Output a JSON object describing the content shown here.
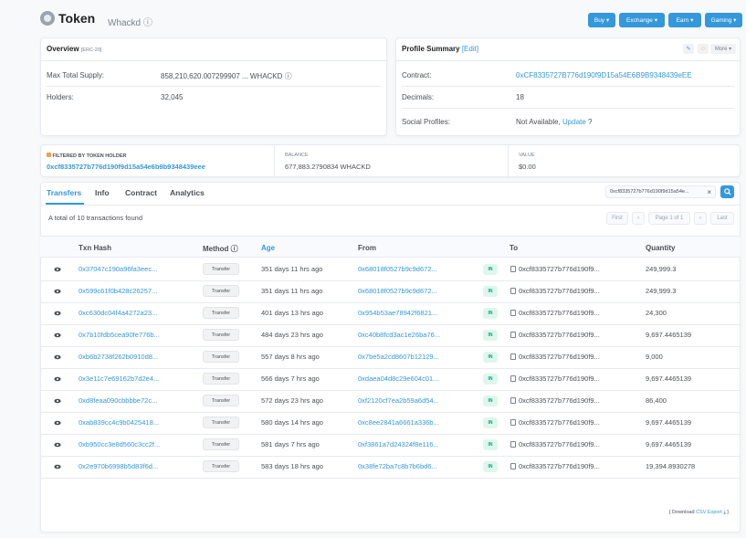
{
  "header": {
    "title": "Token",
    "subtitle": "Whackd ⓘ",
    "buttons": [
      "Buy ▾",
      "Exchange ▾",
      "Earn ▾",
      "Gaming ▾"
    ]
  },
  "overview": {
    "title": "Overview",
    "badge": "[ERC-20]",
    "rows": [
      {
        "label": "Max Total Supply:",
        "value": "858,210,620.007299907 ...  WHACKD ⓘ"
      },
      {
        "label": "Holders:",
        "value": "32,045"
      }
    ]
  },
  "profile": {
    "title": "Profile Summary",
    "edit": "[Edit]",
    "more": "More ▾",
    "rows": [
      {
        "label": "Contract:",
        "value": "0xCF8335727B776d190f9D15a54E6B9B9348439eEE"
      },
      {
        "label": "Decimals:",
        "value": "18"
      },
      {
        "label": "Social Profiles:",
        "value": "Not Available,",
        "link": "Update",
        "suffix": " ?"
      }
    ]
  },
  "filter": {
    "label": "FILTERED BY TOKEN HOLDER",
    "address": "0xcf8335727b776d190f9d15a54e6b9b9348439eee",
    "balance_label": "BALANCE",
    "balance": "677,883.2790834 WHACKD",
    "value_label": "VALUE",
    "value": "$0.00"
  },
  "tabs": [
    "Transfers",
    "Info",
    "Contract",
    "Analytics"
  ],
  "search": {
    "value": "0xcf8335727b776d190f9d15a54e...",
    "clear": "×"
  },
  "summary": "A total of 10 transactions found",
  "pager": {
    "first": "First",
    "prev": "‹",
    "page": "Page 1 of 1",
    "next": "›",
    "last": "Last"
  },
  "columns": [
    "Txn Hash",
    "Method ⓘ",
    "Age",
    "From",
    "To",
    "Quantity"
  ],
  "rows": [
    {
      "hash": "0x37047c190a96fa3eec...",
      "method": "Transfer",
      "age": "351 days 11 hrs ago",
      "from": "0x68018f0527b9c9d672...",
      "dir": "IN",
      "to": "0xcf8335727b776d190f9...",
      "qty": "249,999.3"
    },
    {
      "hash": "0x599c61f0b428c26257...",
      "method": "Transfer",
      "age": "351 days 11 hrs ago",
      "from": "0x68018f0527b9c9d672...",
      "dir": "IN",
      "to": "0xcf8335727b776d190f9...",
      "qty": "249,999.3"
    },
    {
      "hash": "0xc630dc04f4a4272a23...",
      "method": "Transfer",
      "age": "401 days 13 hrs ago",
      "from": "0x954b53ae78942f6821...",
      "dir": "IN",
      "to": "0xcf8335727b776d190f9...",
      "qty": "24,300"
    },
    {
      "hash": "0x7b10fdb5cea90fe776b...",
      "method": "Transfer",
      "age": "484 days 23 hrs ago",
      "from": "0xc40b8fcd3ac1e26ba76...",
      "dir": "IN",
      "to": "0xcf8335727b776d190f9...",
      "qty": "9,697.4465139"
    },
    {
      "hash": "0xb6b2738f262b0910d8...",
      "method": "Transfer",
      "age": "557 days 8 hrs ago",
      "from": "0x7be5a2cd8607b12129...",
      "dir": "IN",
      "to": "0xcf8335727b776d190f9...",
      "qty": "9,000"
    },
    {
      "hash": "0x3e11c7e69162b7d2e4...",
      "method": "Transfer",
      "age": "566 days 7 hrs ago",
      "from": "0xdaea04d8c29e604c01...",
      "dir": "IN",
      "to": "0xcf8335727b776d190f9...",
      "qty": "9,697.4465139"
    },
    {
      "hash": "0xd8feaa090cbbbbe72c...",
      "method": "Transfer",
      "age": "572 days 23 hrs ago",
      "from": "0xf2120cf7ea2b59a6d54...",
      "dir": "IN",
      "to": "0xcf8335727b776d190f9...",
      "qty": "86,400"
    },
    {
      "hash": "0xab839cc4c9b0425418...",
      "method": "Transfer",
      "age": "580 days 14 hrs ago",
      "from": "0xc8ee2841a6661a336b...",
      "dir": "IN",
      "to": "0xcf8335727b776d190f9...",
      "qty": "9,697.4465139"
    },
    {
      "hash": "0xb950cc3e8d560c3cc2f...",
      "method": "Transfer",
      "age": "581 days 7 hrs ago",
      "from": "0xf3861a7d24324f8e116...",
      "dir": "IN",
      "to": "0xcf8335727b776d190f9...",
      "qty": "9,697.4465139"
    },
    {
      "hash": "0x2e970b6998b5d83f6d...",
      "method": "Transfer",
      "age": "583 days 18 hrs ago",
      "from": "0x38fe72ba7c8b7b6bd6...",
      "dir": "IN",
      "to": "0xcf8335727b776d190f9...",
      "qty": "19,394.8930278"
    }
  ],
  "download": {
    "prefix": "[ Download",
    "link": "CSV Export",
    "suffix": "⤓ ]"
  },
  "colors": {
    "accent": "#3498db",
    "in_badge": "#00a186"
  }
}
